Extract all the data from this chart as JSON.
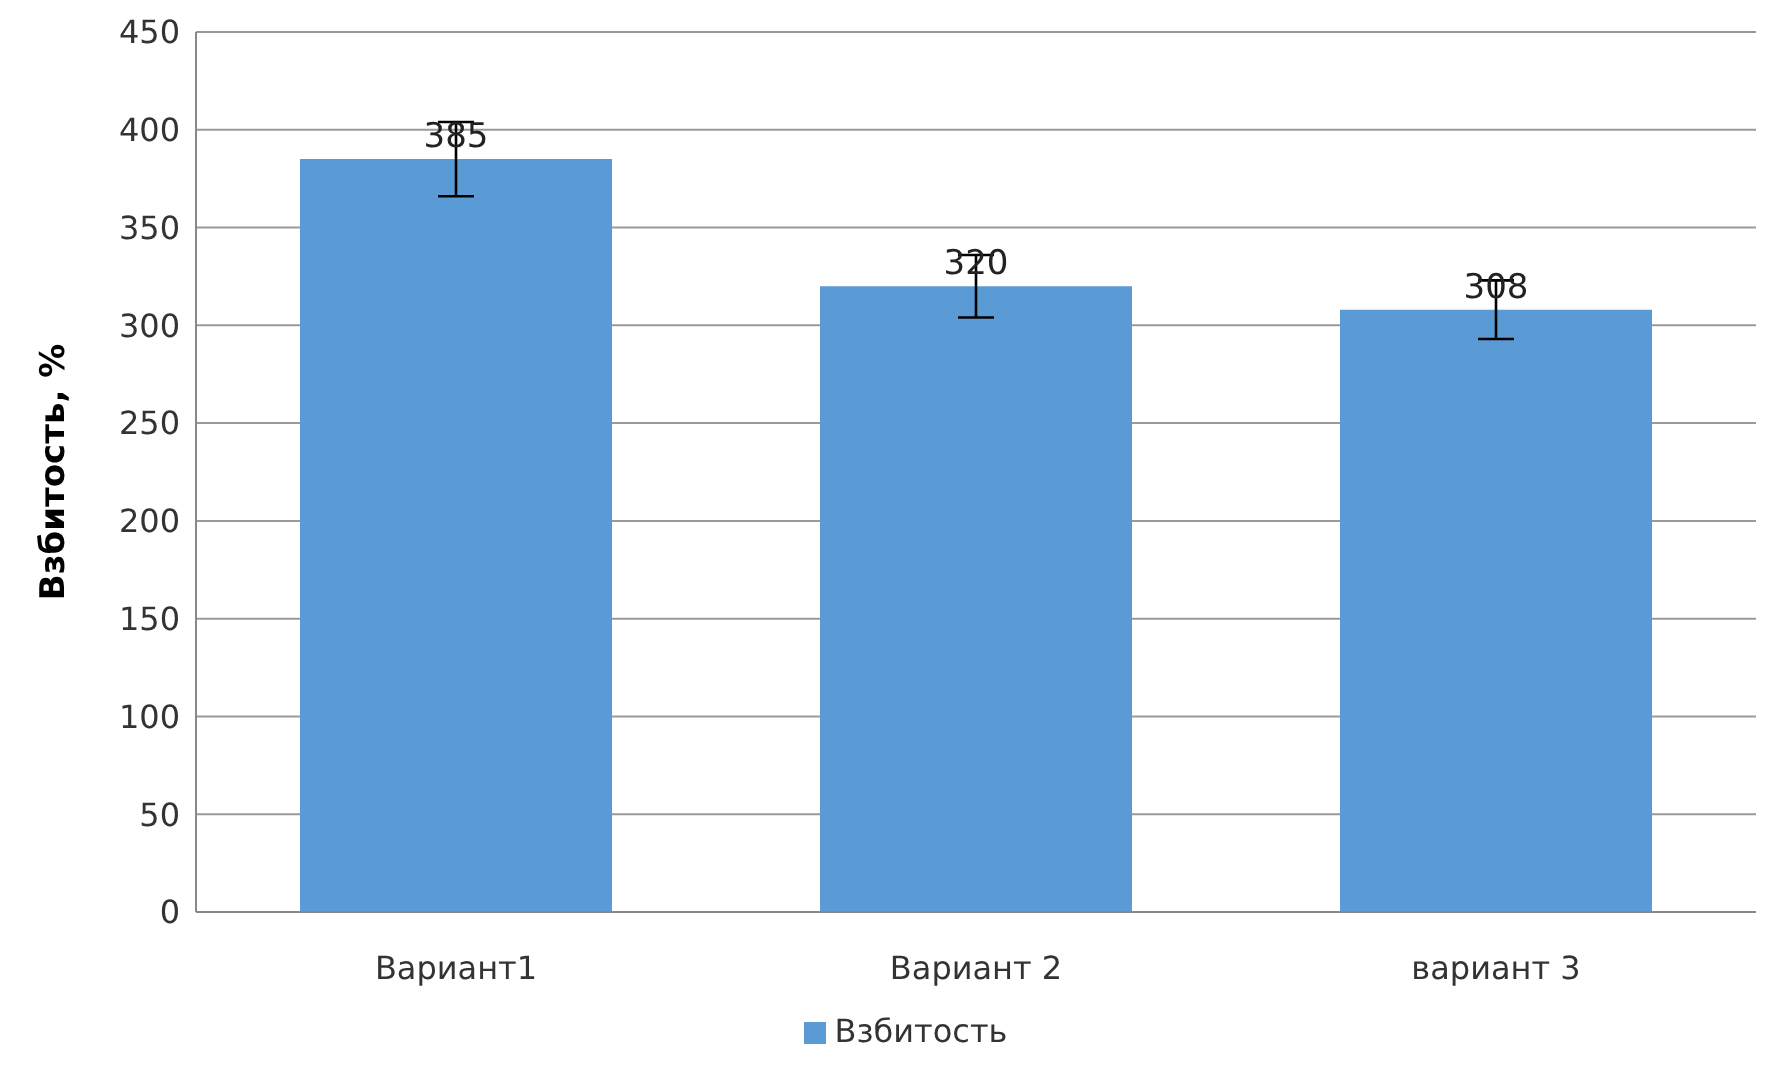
{
  "chart_data": {
    "type": "bar",
    "ylabel": "Взбитость, %",
    "categories": [
      "Вариант1",
      "Вариант 2",
      "вариант 3"
    ],
    "series": [
      {
        "name": "Взбитость",
        "color": "#5b9bd5",
        "values": [
          385,
          320,
          308
        ],
        "errors": [
          19,
          16,
          15
        ]
      }
    ],
    "ylim": [
      0,
      450
    ],
    "yticks": [
      0,
      50,
      100,
      150,
      200,
      250,
      300,
      350,
      400,
      450
    ],
    "grid": "y",
    "legend": "bottom",
    "data_labels": true
  }
}
